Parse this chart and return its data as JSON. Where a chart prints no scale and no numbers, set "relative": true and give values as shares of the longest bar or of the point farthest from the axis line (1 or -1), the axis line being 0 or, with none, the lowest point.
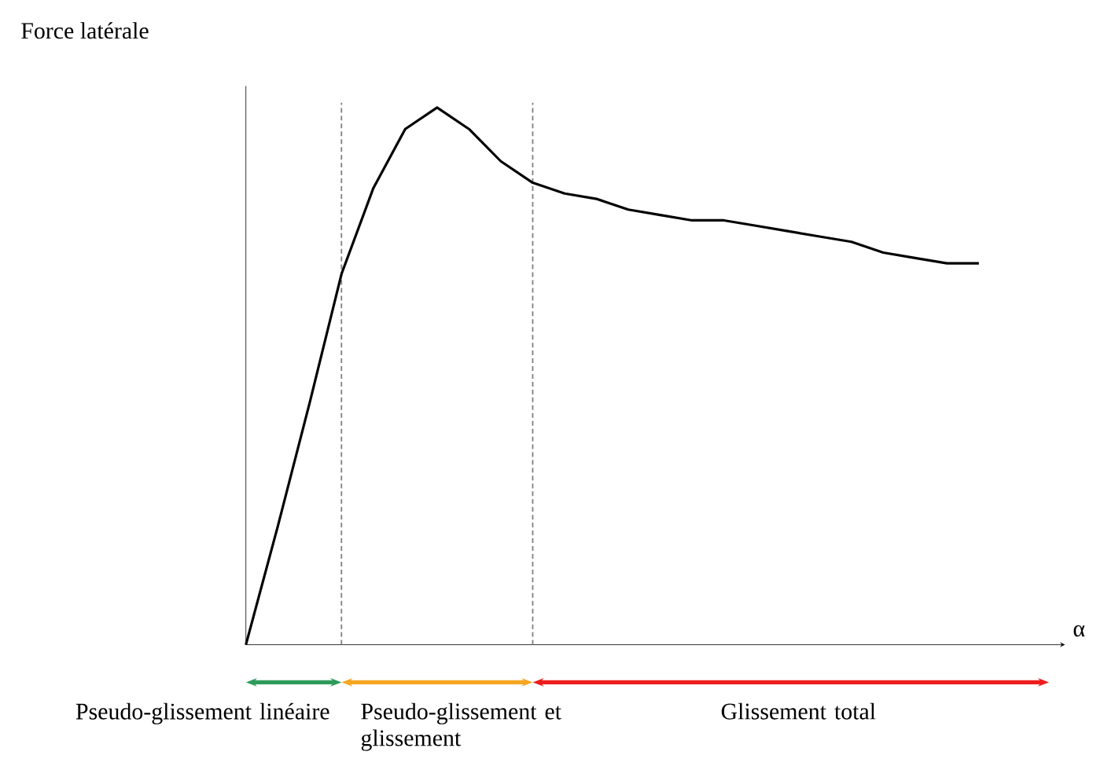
{
  "chart_data": {
    "type": "line",
    "relative": true,
    "ylabel": "Force latérale",
    "xlabel": "α",
    "categories": [
      null,
      null,
      null,
      null,
      null,
      null,
      null,
      null,
      null,
      null,
      null,
      null,
      null,
      null,
      null,
      null,
      null,
      null,
      null,
      null,
      null,
      null,
      null,
      null
    ],
    "series": [
      {
        "color": "#000000",
        "values": [
          0,
          0.22,
          0.45,
          0.69,
          0.85,
          0.96,
          1,
          0.96,
          0.9,
          0.86,
          0.84,
          0.83,
          0.81,
          0.8,
          0.79,
          0.79,
          0.78,
          0.77,
          0.76,
          0.75,
          0.73,
          0.72,
          0.71,
          0.71
        ]
      }
    ],
    "annotations": [
      "Pseudo-glissement linéaire",
      "Pseudo-glissement et glissement",
      "Glissement total"
    ],
    "marker": "none",
    "line_style": "solid"
  }
}
